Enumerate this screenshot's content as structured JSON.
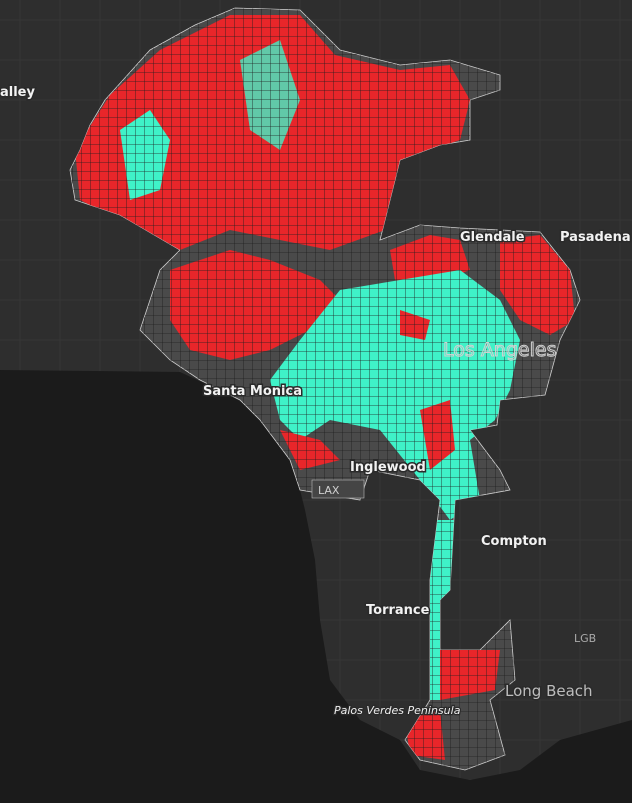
{
  "labels": {
    "valley": "alley",
    "glendale": "Glendale",
    "pasadena": "Pasadena",
    "los_angeles": "Los Angeles",
    "santa_monica": "Santa Monica",
    "inglewood": "Inglewood",
    "lax": "LAX",
    "compton": "Compton",
    "torrance": "Torrance",
    "lgb": "LGB",
    "long_beach": "Long Beach",
    "palos_verdes": "Palos Verdes Peninsula"
  }
}
